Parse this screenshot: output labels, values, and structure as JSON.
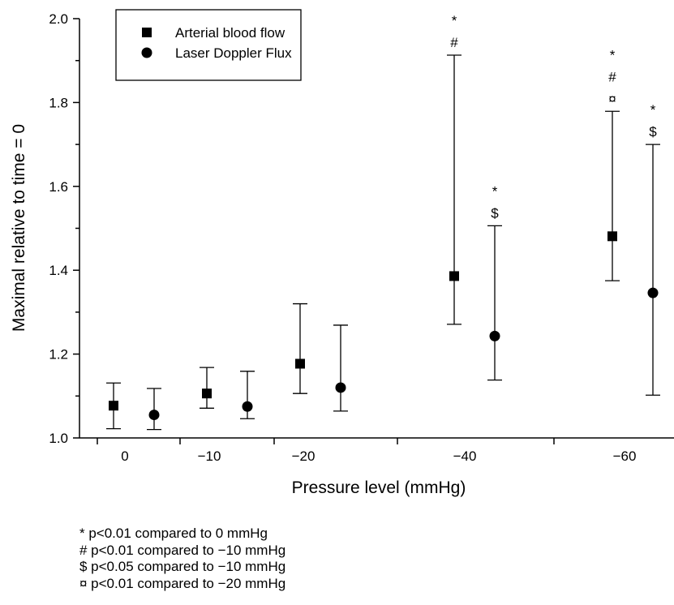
{
  "chart_data": {
    "type": "scatter",
    "xlabel": "Pressure level (mmHg)",
    "ylabel": "Maximal relative to time = 0",
    "ylim": [
      1.0,
      2.0
    ],
    "yticks": [
      "1.0",
      "1.2",
      "1.4",
      "1.6",
      "1.8",
      "2.0"
    ],
    "categories": [
      "0",
      "−10",
      "−20",
      "−40",
      "−60"
    ],
    "grid": false,
    "legend_position": "top-left",
    "series": [
      {
        "name": "Arterial blood flow",
        "marker": "square",
        "values": [
          1.077,
          1.106,
          1.177,
          1.386,
          1.481
        ],
        "error_lower": [
          1.022,
          1.071,
          1.106,
          1.271,
          1.375
        ],
        "error_upper": [
          1.131,
          1.168,
          1.32,
          1.913,
          1.779
        ],
        "annotations": [
          [],
          [],
          [],
          [
            "*",
            "#"
          ],
          [
            "*",
            "#",
            "¤"
          ]
        ]
      },
      {
        "name": "Laser Doppler Flux",
        "marker": "circle",
        "values": [
          1.055,
          1.075,
          1.12,
          1.243,
          1.346
        ],
        "error_lower": [
          1.02,
          1.046,
          1.064,
          1.138,
          1.102
        ],
        "error_upper": [
          1.118,
          1.159,
          1.269,
          1.506,
          1.7
        ],
        "annotations": [
          [],
          [],
          [],
          [
            "*",
            "$"
          ],
          [
            "*",
            "$"
          ]
        ]
      }
    ]
  },
  "footnotes": [
    "* p<0.01 compared to 0 mmHg",
    "# p<0.01 compared to −10 mmHg",
    "$ p<0.05 compared to −10 mmHg",
    "¤ p<0.01 compared to −20 mmHg"
  ]
}
